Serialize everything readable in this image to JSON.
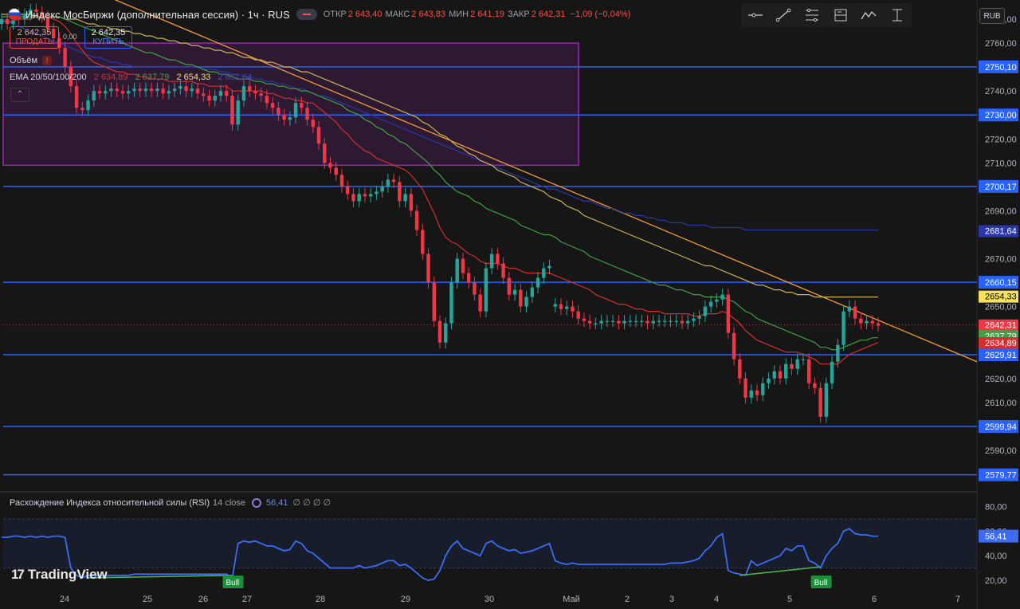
{
  "header": {
    "title": "Индекс МосБиржи (дополнительная сессия) · 1ч · RUS",
    "open_label": "ОТКР",
    "open_value": "2 643,40",
    "high_label": "МАКС",
    "high_value": "2 643,83",
    "low_label": "МИН",
    "low_value": "2 641,19",
    "close_label": "ЗАКР",
    "close_value": "2 642,31",
    "change_value": "−1,09 (−0,04%)"
  },
  "toolbar": {
    "tools": [
      "horizontal-ray-icon",
      "trend-line-icon",
      "fib-retracement-icon",
      "position-icon",
      "path-icon",
      "measure-icon"
    ],
    "currency": "RUB"
  },
  "trade": {
    "sell_price": "2 642,35",
    "sell_label": "ПРОДАТЬ",
    "spread": "0,00",
    "buy_price": "2 642,35",
    "buy_label": "КУПИТЬ"
  },
  "indicators": {
    "volume_label": "Объём",
    "volume_badge": "!",
    "ema_label": "EMA 20/50/100/200",
    "ema_values": [
      "2 634,89",
      "2 637,79",
      "2 654,33",
      "2 681,64"
    ],
    "collapse_glyph": "⌃"
  },
  "rsi": {
    "label": "Расхождение Индекса относительной силы (RSI)",
    "params": "14 close",
    "value": "56,41",
    "extras": "∅ ∅ ∅ ∅",
    "bull_label": "Bull",
    "y_ticks": [
      80,
      60,
      40,
      20
    ],
    "y_tick_labels": [
      "80,00",
      "60,00",
      "40,00",
      "20,00"
    ]
  },
  "logo": {
    "mark": "17",
    "text": "TradingView"
  },
  "colors": {
    "up": "#26a69a",
    "down": "#f23645",
    "ema20": "#d32f2f",
    "ema50": "#43a047",
    "ema100": "#c9b458",
    "ema200": "#2b37a8",
    "level": "#2962ff",
    "trend": "#f29d38",
    "box": "#9c27b0",
    "rsi": "#3d6bf5"
  },
  "chart_data": {
    "type": "candlestick",
    "x_tick_labels": [
      "24",
      "25",
      "26",
      "27",
      "28",
      "29",
      "30",
      "Май",
      "2",
      "3",
      "4",
      "5",
      "6",
      "7"
    ],
    "y_ticks": [
      2770,
      2760,
      2740,
      2730,
      2720,
      2710,
      2690,
      2670,
      2650,
      2620,
      2610,
      2590
    ],
    "y_tick_labels": [
      "2770,00",
      "2760,00",
      "2740,00",
      "2730,00",
      "2720,00",
      "2710,00",
      "2690,00",
      "2670,00",
      "2650,00",
      "2620,00",
      "2610,00",
      "2590,00"
    ],
    "ylim": [
      2573,
      2778
    ],
    "levels": [
      2750.1,
      2730.0,
      2700.17,
      2660.15,
      2629.91,
      2599.94,
      2579.77
    ],
    "level_labels": [
      "2750,10",
      "2730,00",
      "2700,17",
      "2660,15",
      "2629,91",
      "2599,94",
      "2579,77"
    ],
    "price_badges": [
      {
        "value": 2681.64,
        "label": "2681,64",
        "color": "#2b37a8"
      },
      {
        "value": 2654.33,
        "label": "2654,33",
        "color": "#f5e25c"
      },
      {
        "value": 2642.31,
        "label": "2642,31",
        "color": "#f23645"
      },
      {
        "value": 2637.79,
        "label": "2637,79",
        "color": "#43a047"
      },
      {
        "value": 2634.89,
        "label": "2634,89",
        "color": "#d32f2f"
      }
    ],
    "zone": {
      "y_top": 2760,
      "y_bottom": 2709
    },
    "close": [
      2770,
      2768,
      2772,
      2770,
      2772,
      2774,
      2773,
      2771,
      2766,
      2762,
      2758,
      2750,
      2742,
      2733,
      2732,
      2736,
      2740,
      2739,
      2740,
      2741,
      2740,
      2739,
      2740,
      2741,
      2740,
      2741,
      2740,
      2741,
      2739,
      2740,
      2741,
      2742,
      2740,
      2741,
      2739,
      2738,
      2736,
      2738,
      2740,
      2738,
      2726,
      2736,
      2742,
      2740,
      2739,
      2738,
      2735,
      2733,
      2730,
      2728,
      2729,
      2735,
      2733,
      2728,
      2725,
      2718,
      2710,
      2708,
      2705,
      2700,
      2697,
      2694,
      2697,
      2696,
      2697,
      2698,
      2700,
      2703,
      2702,
      2694,
      2697,
      2690,
      2682,
      2672,
      2660,
      2644,
      2635,
      2643,
      2660,
      2670,
      2664,
      2660,
      2655,
      2648,
      2666,
      2672,
      2668,
      2662,
      2655,
      2657,
      2650,
      2654,
      2658,
      2662,
      2666,
      2667,
      2651,
      2649,
      2650,
      2648,
      2645,
      2644,
      2643,
      2643,
      2644,
      2644,
      2644,
      2643,
      2644,
      2644,
      2644,
      2644,
      2643,
      2644,
      2644,
      2644,
      2644,
      2644,
      2643,
      2644,
      2645,
      2646,
      2650,
      2652,
      2653,
      2655,
      2639,
      2628,
      2620,
      2612,
      2615,
      2613,
      2618,
      2620,
      2623,
      2620,
      2626,
      2624,
      2628,
      2628,
      2618,
      2616,
      2604,
      2618,
      2627,
      2634,
      2648,
      2650,
      2645,
      2643,
      2644,
      2643,
      2642
    ],
    "open": [
      2768,
      2770,
      2768,
      2772,
      2770,
      2772,
      2774,
      2773,
      2771,
      2766,
      2762,
      2758,
      2750,
      2742,
      2733,
      2732,
      2736,
      2740,
      2739,
      2740,
      2741,
      2740,
      2739,
      2740,
      2741,
      2740,
      2741,
      2740,
      2741,
      2739,
      2740,
      2741,
      2742,
      2740,
      2741,
      2739,
      2738,
      2736,
      2738,
      2740,
      2738,
      2726,
      2736,
      2742,
      2740,
      2739,
      2738,
      2735,
      2733,
      2730,
      2728,
      2729,
      2735,
      2733,
      2728,
      2725,
      2718,
      2710,
      2708,
      2705,
      2700,
      2697,
      2694,
      2697,
      2696,
      2697,
      2698,
      2700,
      2703,
      2702,
      2694,
      2697,
      2690,
      2682,
      2672,
      2660,
      2644,
      2635,
      2643,
      2660,
      2670,
      2664,
      2660,
      2655,
      2648,
      2666,
      2672,
      2668,
      2662,
      2655,
      2657,
      2650,
      2654,
      2658,
      2662,
      2666,
      2650,
      2651,
      2649,
      2650,
      2648,
      2645,
      2644,
      2643,
      2643,
      2644,
      2644,
      2644,
      2643,
      2644,
      2644,
      2644,
      2644,
      2643,
      2644,
      2644,
      2644,
      2644,
      2644,
      2643,
      2644,
      2645,
      2646,
      2650,
      2652,
      2653,
      2655,
      2639,
      2628,
      2620,
      2612,
      2615,
      2613,
      2618,
      2620,
      2623,
      2620,
      2626,
      2624,
      2628,
      2628,
      2618,
      2616,
      2604,
      2618,
      2627,
      2634,
      2648,
      2650,
      2645,
      2643,
      2644,
      2643
    ],
    "ema20": [
      2769,
      2769,
      2769,
      2770,
      2770,
      2770,
      2771,
      2771,
      2771,
      2770,
      2769,
      2767,
      2764,
      2760,
      2757,
      2754,
      2752,
      2751,
      2750,
      2749,
      2748,
      2748,
      2747,
      2747,
      2746,
      2746,
      2745,
      2745,
      2745,
      2744,
      2744,
      2744,
      2744,
      2744,
      2743,
      2743,
      2742,
      2742,
      2742,
      2742,
      2740,
      2740,
      2740,
      2740,
      2740,
      2740,
      2739,
      2739,
      2738,
      2737,
      2737,
      2736,
      2736,
      2735,
      2735,
      2733,
      2731,
      2729,
      2727,
      2724,
      2722,
      2719,
      2717,
      2715,
      2714,
      2712,
      2711,
      2710,
      2709,
      2708,
      2707,
      2705,
      2702,
      2699,
      2694,
      2689,
      2683,
      2679,
      2677,
      2676,
      2674,
      2672,
      2671,
      2669,
      2668,
      2668,
      2668,
      2667,
      2666,
      2666,
      2665,
      2664,
      2664,
      2664,
      2664,
      2664,
      2663,
      2662,
      2661,
      2660,
      2659,
      2658,
      2657,
      2655,
      2654,
      2653,
      2652,
      2651,
      2651,
      2650,
      2649,
      2649,
      2648,
      2648,
      2648,
      2647,
      2647,
      2647,
      2647,
      2647,
      2646,
      2646,
      2647,
      2647,
      2647,
      2648,
      2647,
      2645,
      2643,
      2640,
      2638,
      2636,
      2635,
      2634,
      2633,
      2632,
      2631,
      2631,
      2631,
      2630,
      2629,
      2628,
      2626,
      2626,
      2626,
      2626,
      2628,
      2630,
      2631,
      2632,
      2633,
      2634,
      2635
    ],
    "ema50": [
      2771,
      2771,
      2771,
      2771,
      2771,
      2771,
      2771,
      2771,
      2771,
      2771,
      2771,
      2770,
      2769,
      2768,
      2767,
      2766,
      2765,
      2764,
      2763,
      2762,
      2761,
      2760,
      2759,
      2758,
      2757,
      2756,
      2756,
      2755,
      2754,
      2753,
      2753,
      2752,
      2751,
      2751,
      2750,
      2749,
      2748,
      2748,
      2747,
      2747,
      2746,
      2745,
      2745,
      2745,
      2744,
      2744,
      2743,
      2743,
      2742,
      2742,
      2741,
      2741,
      2740,
      2740,
      2739,
      2738,
      2737,
      2736,
      2735,
      2734,
      2732,
      2731,
      2730,
      2728,
      2727,
      2725,
      2724,
      2722,
      2721,
      2719,
      2718,
      2716,
      2714,
      2712,
      2710,
      2707,
      2705,
      2702,
      2700,
      2698,
      2697,
      2696,
      2694,
      2693,
      2691,
      2690,
      2689,
      2688,
      2687,
      2686,
      2684,
      2683,
      2682,
      2681,
      2680,
      2680,
      2679,
      2677,
      2676,
      2675,
      2674,
      2673,
      2671,
      2670,
      2669,
      2668,
      2667,
      2666,
      2665,
      2664,
      2663,
      2662,
      2661,
      2660,
      2659,
      2659,
      2658,
      2657,
      2657,
      2656,
      2655,
      2655,
      2654,
      2654,
      2654,
      2654,
      2653,
      2652,
      2650,
      2648,
      2647,
      2645,
      2644,
      2643,
      2642,
      2641,
      2640,
      2639,
      2638,
      2637,
      2636,
      2635,
      2633,
      2633,
      2632,
      2632,
      2633,
      2634,
      2635,
      2636,
      2636,
      2637,
      2637
    ],
    "ema100": [
      2772,
      2772,
      2772,
      2772,
      2772,
      2772,
      2771,
      2771,
      2771,
      2771,
      2771,
      2770,
      2770,
      2770,
      2769,
      2768,
      2768,
      2767,
      2767,
      2766,
      2766,
      2765,
      2765,
      2764,
      2764,
      2763,
      2763,
      2762,
      2762,
      2761,
      2761,
      2760,
      2760,
      2759,
      2759,
      2758,
      2758,
      2757,
      2757,
      2756,
      2756,
      2755,
      2754,
      2754,
      2753,
      2753,
      2752,
      2752,
      2751,
      2750,
      2750,
      2749,
      2748,
      2748,
      2747,
      2746,
      2745,
      2744,
      2743,
      2742,
      2741,
      2740,
      2739,
      2738,
      2737,
      2736,
      2735,
      2734,
      2733,
      2732,
      2731,
      2730,
      2729,
      2727,
      2726,
      2724,
      2722,
      2721,
      2719,
      2717,
      2716,
      2714,
      2713,
      2711,
      2710,
      2709,
      2707,
      2706,
      2705,
      2704,
      2702,
      2701,
      2700,
      2699,
      2698,
      2696,
      2695,
      2694,
      2692,
      2691,
      2690,
      2688,
      2687,
      2686,
      2685,
      2684,
      2683,
      2682,
      2681,
      2680,
      2679,
      2678,
      2677,
      2676,
      2675,
      2674,
      2673,
      2672,
      2671,
      2670,
      2669,
      2668,
      2667,
      2667,
      2666,
      2665,
      2664,
      2663,
      2662,
      2661,
      2660,
      2659,
      2659,
      2658,
      2657,
      2657,
      2656,
      2656,
      2655,
      2655,
      2655,
      2654,
      2654,
      2654,
      2654,
      2654,
      2654,
      2654,
      2654,
      2654,
      2654,
      2654,
      2654
    ],
    "ema200": [
      2770,
      2769,
      2768,
      2767,
      2766,
      2765,
      2764,
      2763,
      2762,
      2761,
      2760,
      2759,
      2758,
      2757,
      2756,
      2755,
      2754,
      2754,
      2753,
      2752,
      2752,
      2751,
      2751,
      2750,
      2750,
      2750,
      2750,
      2750,
      2750,
      2750,
      2750,
      2750,
      2750,
      2750,
      2750,
      2749,
      2749,
      2749,
      2748,
      2748,
      2747,
      2747,
      2746,
      2746,
      2745,
      2745,
      2744,
      2744,
      2743,
      2743,
      2742,
      2741,
      2741,
      2740,
      2739,
      2738,
      2738,
      2737,
      2736,
      2735,
      2734,
      2733,
      2732,
      2731,
      2730,
      2729,
      2728,
      2727,
      2726,
      2725,
      2724,
      2723,
      2722,
      2721,
      2720,
      2719,
      2718,
      2717,
      2716,
      2715,
      2714,
      2713,
      2712,
      2711,
      2710,
      2709,
      2708,
      2707,
      2706,
      2705,
      2704,
      2703,
      2702,
      2701,
      2700,
      2699,
      2699,
      2698,
      2697,
      2696,
      2695,
      2694,
      2694,
      2693,
      2692,
      2691,
      2691,
      2690,
      2689,
      2689,
      2688,
      2688,
      2687,
      2687,
      2686,
      2686,
      2685,
      2685,
      2685,
      2684,
      2684,
      2684,
      2684,
      2683,
      2683,
      2683,
      2683,
      2683,
      2683,
      2682,
      2682,
      2682,
      2682,
      2682,
      2682,
      2682,
      2682,
      2682,
      2682,
      2682,
      2682,
      2682,
      2682,
      2682,
      2682,
      2682,
      2682,
      2682,
      2682,
      2682,
      2682,
      2682,
      2682
    ],
    "rsi": [
      55,
      55,
      56,
      56,
      55,
      56,
      55,
      56,
      55,
      56,
      56,
      55,
      30,
      24,
      22,
      24,
      24,
      24,
      24,
      24,
      24,
      24,
      24,
      25,
      25,
      25,
      25,
      25,
      25,
      25,
      25,
      25,
      25,
      25,
      25,
      25,
      25,
      25,
      25,
      25,
      22,
      50,
      52,
      51,
      52,
      50,
      48,
      48,
      46,
      44,
      45,
      52,
      50,
      44,
      42,
      38,
      34,
      30,
      30,
      30,
      30,
      30,
      32,
      30,
      31,
      32,
      34,
      36,
      36,
      32,
      33,
      30,
      26,
      22,
      20,
      21,
      28,
      40,
      48,
      52,
      46,
      44,
      42,
      40,
      50,
      52,
      48,
      46,
      44,
      45,
      42,
      43,
      44,
      46,
      48,
      50,
      36,
      34,
      33,
      34,
      33,
      33,
      33,
      33,
      33,
      33,
      33,
      33,
      33,
      33,
      33,
      33,
      33,
      33,
      33,
      33,
      34,
      34,
      34,
      35,
      36,
      38,
      44,
      48,
      55,
      58,
      28,
      26,
      25,
      24,
      36,
      32,
      34,
      36,
      38,
      40,
      46,
      44,
      48,
      48,
      36,
      34,
      30,
      40,
      46,
      50,
      60,
      62,
      58,
      57,
      57,
      56,
      56
    ],
    "bull_divergences": [
      {
        "from_index": 15,
        "to_index": 40,
        "from_rsi": 22,
        "to_rsi": 24
      },
      {
        "from_index": 128,
        "to_index": 142,
        "from_rsi": 24,
        "to_rsi": 31
      }
    ]
  }
}
